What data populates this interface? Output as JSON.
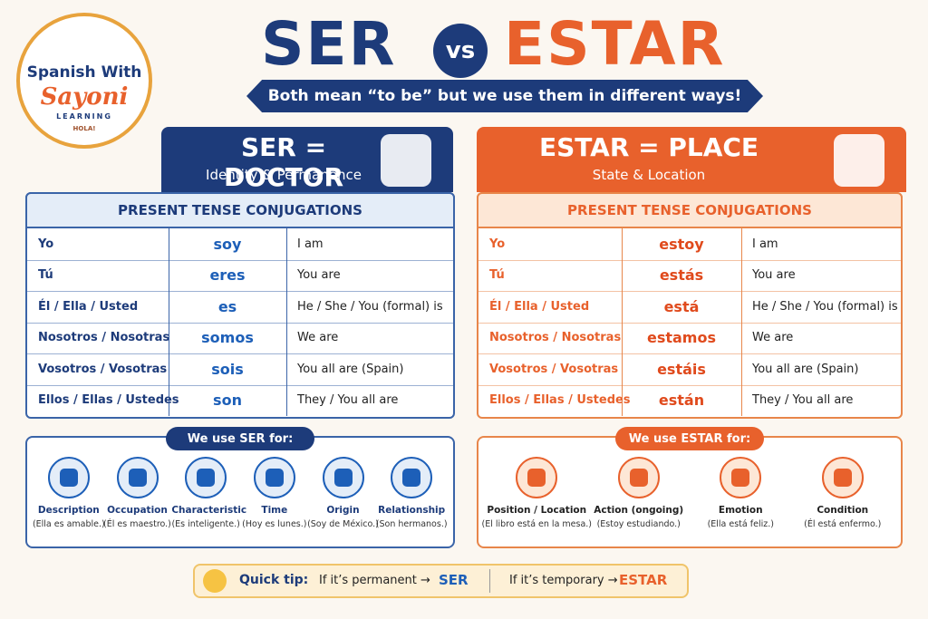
{
  "logo": {
    "line1": "Spanish With",
    "line2": "Sayoni",
    "line3": "LEARNING",
    "badge": "HOLA!"
  },
  "title": {
    "ser": "SER",
    "vs": "vs",
    "estar": "ESTAR"
  },
  "subtitle": "Both mean “to be” but we use them in different ways!",
  "ser": {
    "heading": "SER = DOCTOR",
    "subheading": "Identity & Permanence",
    "table_title": "PRESENT TENSE CONJUGATIONS",
    "rows": [
      [
        "Yo",
        "soy",
        "I am"
      ],
      [
        "Tú",
        "eres",
        "You are"
      ],
      [
        "Él / Ella / Usted",
        "es",
        "He / She / You (formal) is"
      ],
      [
        "Nosotros / Nosotras",
        "somos",
        "We are"
      ],
      [
        "Vosotros / Vosotras",
        "sois",
        "You all are (Spain)"
      ],
      [
        "Ellos / Ellas / Ustedes",
        "son",
        "They / You all are"
      ]
    ],
    "uses_title": "We use SER for:",
    "uses": [
      {
        "label": "Description",
        "example": "(Ella es amable.)"
      },
      {
        "label": "Occupation",
        "example": "(Él es maestro.)"
      },
      {
        "label": "Characteristic",
        "example": "(Es inteligente.)"
      },
      {
        "label": "Time",
        "example": "(Hoy es lunes.)"
      },
      {
        "label": "Origin",
        "example": "(Soy de México.)"
      },
      {
        "label": "Relationship",
        "example": "(Son hermanos.)"
      }
    ]
  },
  "estar": {
    "heading": "ESTAR = PLACE",
    "subheading": "State & Location",
    "table_title": "PRESENT TENSE CONJUGATIONS",
    "rows": [
      [
        "Yo",
        "estoy",
        "I am"
      ],
      [
        "Tú",
        "estás",
        "You are"
      ],
      [
        "Él / Ella / Usted",
        "está",
        "He / She / You (formal) is"
      ],
      [
        "Nosotros / Nosotras",
        "estamos",
        "We are"
      ],
      [
        "Vosotros / Vosotras",
        "estáis",
        "You all are (Spain)"
      ],
      [
        "Ellos / Ellas / Ustedes",
        "están",
        "They / You all are"
      ]
    ],
    "uses_title": "We use ESTAR for:",
    "uses": [
      {
        "label": "Position / Location",
        "example": "(El libro está en la mesa.)"
      },
      {
        "label": "Action (ongoing)",
        "example": "(Estoy estudiando.)"
      },
      {
        "label": "Emotion",
        "example": "(Ella está feliz.)"
      },
      {
        "label": "Condition",
        "example": "(Él está enfermo.)"
      }
    ]
  },
  "tip": {
    "label": "Quick tip:",
    "ser_text": "If it’s permanent →",
    "ser": "SER",
    "estar_text": "If it’s temporary →",
    "estar": "ESTAR"
  }
}
